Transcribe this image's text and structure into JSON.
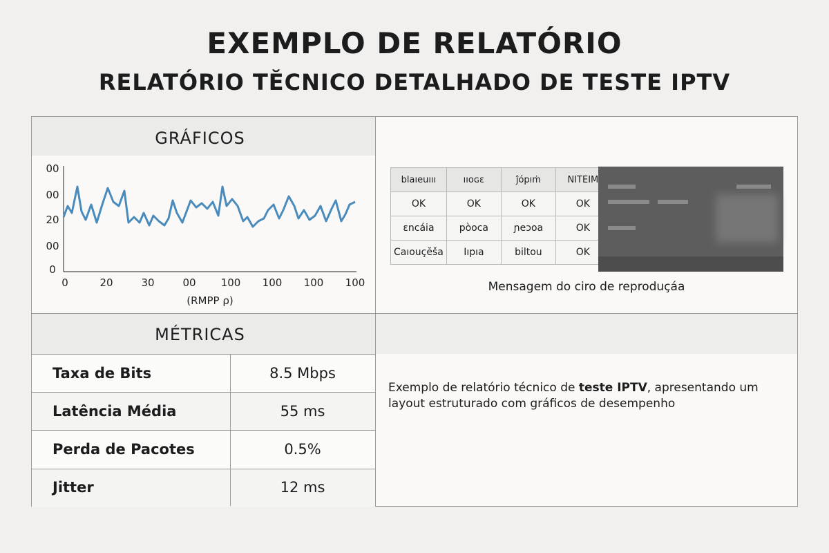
{
  "header": {
    "title": "EXEMPLO DE RELATÓRIO",
    "subtitle": "RELATÓRIO TĔCNICO DETALHADO DE TESTE IPTV"
  },
  "graphs": {
    "heading": "GRÁFICOS",
    "y_labels": [
      "00",
      "00",
      "20",
      "00",
      "0"
    ],
    "x_labels": [
      "0",
      "20",
      "30",
      "00",
      "100",
      "100",
      "100",
      "100"
    ],
    "x_axis_label": "(RMPP ρ)"
  },
  "status_table": {
    "rows": [
      [
        "blaıeuııı",
        "ııoɢɛ",
        "ĵópıṁ",
        "ΝΙΤΕΙΜ"
      ],
      [
        "OK",
        "OK",
        "OK",
        "OK"
      ],
      [
        "ɛncáia",
        "pòoca",
        "ɲeɔoa",
        "OK"
      ],
      [
        "Caıouçĕša",
        "Iıpıa",
        "biltou",
        "OK"
      ]
    ],
    "caption": "Mensagem do ciro de reproduçáa"
  },
  "metrics": {
    "heading": "MÉTRICAS",
    "rows": [
      [
        "Taxa de Bits",
        "8.5 Mbps"
      ],
      [
        "Latência Média",
        "55 ms"
      ],
      [
        "Perda de Pacotes",
        "0.5%"
      ],
      [
        "Jitter",
        "12 ms"
      ]
    ]
  },
  "description": {
    "before": "Exemplo de relatório técnico de ",
    "bold": "teste IPTV",
    "after": ", apresentando um layout estruturado com gráficos de desempenho"
  }
}
